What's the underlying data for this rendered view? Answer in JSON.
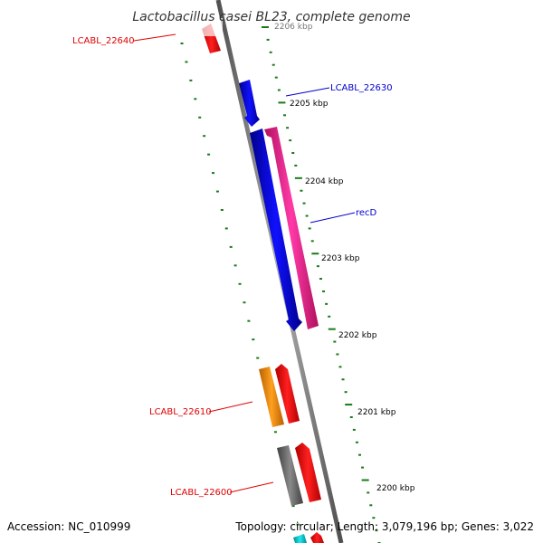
{
  "title": "Lactobacillus casei BL23, complete genome",
  "footer": {
    "accession": "Accession: NC_010999",
    "topology": "Topology: circular; Length: 3,079,196 bp; Genes: 3,022"
  },
  "colors": {
    "backbone": "#808080",
    "tick_green": "#1a7a1a",
    "label_red": "#e00000",
    "label_blue": "#0000cc",
    "gene_red": "#ff0000",
    "gene_blue": "#0000ee",
    "gene_pink": "#ff1493",
    "gene_orange": "#ff8c00",
    "gene_gray": "#707070",
    "gene_cyan": "#00c8d0"
  },
  "ruler": {
    "unit": "kbp",
    "ticks": [
      {
        "label": "2206 kbp"
      },
      {
        "label": "2205 kbp"
      },
      {
        "label": "2204 kbp"
      },
      {
        "label": "2203 kbp"
      },
      {
        "label": "2202 kbp"
      },
      {
        "label": "2201 kbp"
      },
      {
        "label": "2200 kbp"
      }
    ]
  },
  "genes": [
    {
      "name": "LCABL_22640",
      "strand": "minus",
      "color": "red"
    },
    {
      "name": "LCABL_22630",
      "strand": "plus",
      "color": "blue"
    },
    {
      "name": "recD",
      "strand": "minus",
      "color": "pink"
    },
    {
      "name": "LCABL_22610",
      "strand": "plus",
      "color": "orange"
    },
    {
      "name": "LCABL_22600",
      "strand": "plus",
      "color": "gray"
    }
  ]
}
